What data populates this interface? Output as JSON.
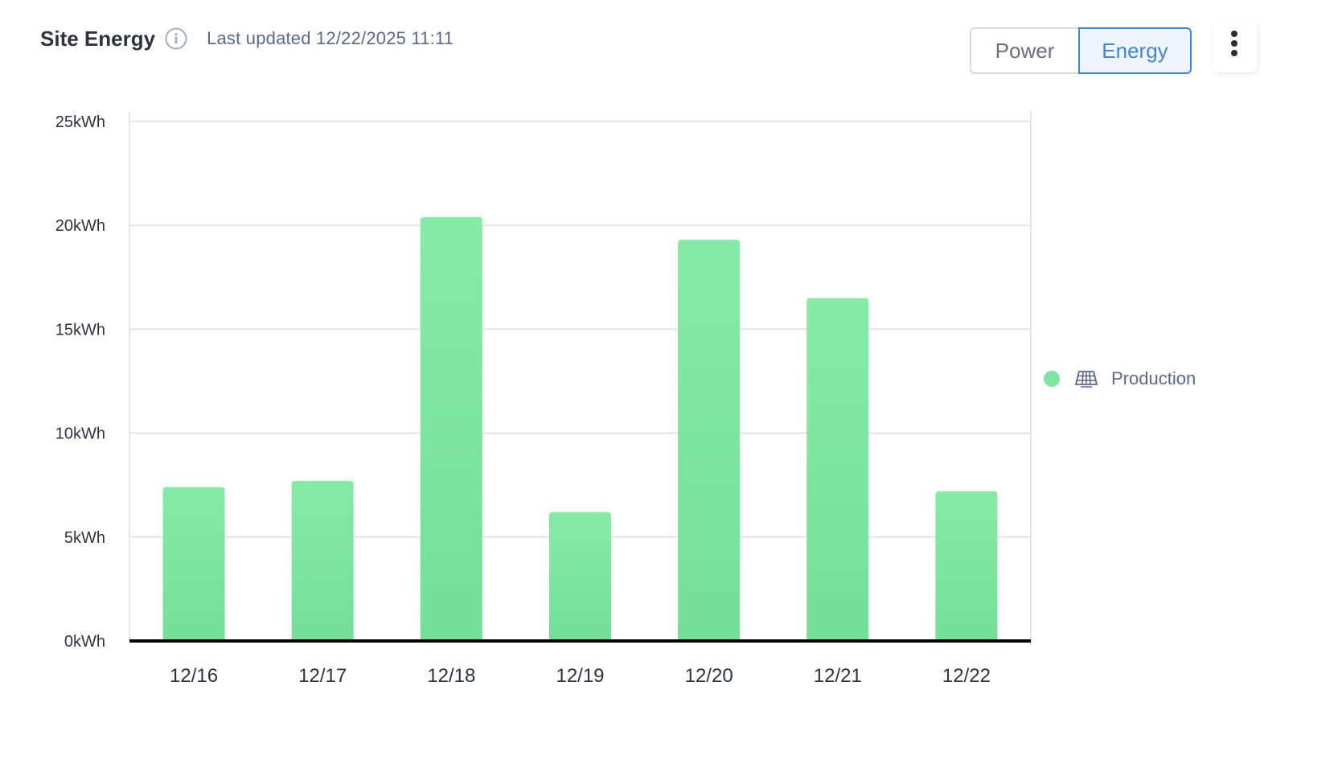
{
  "header": {
    "title": "Site Energy",
    "info_icon": "info-icon",
    "last_updated": "Last updated 12/22/2025 11:11"
  },
  "toggle": {
    "options": [
      "Power",
      "Energy"
    ],
    "selected": "Energy"
  },
  "menu": {
    "icon": "vertical-dots-icon"
  },
  "colors": {
    "bar_fill": "#7fe5a1",
    "bar_fill_bottom": "#74df98",
    "accent": "#3d87e0",
    "grid": "#e3e5e8",
    "axis": "#000000"
  },
  "legend": {
    "marker_color": "#7fe5a1",
    "icon": "solar-panel-icon",
    "label": "Production",
    "position": "right"
  },
  "chart_data": {
    "type": "bar",
    "categories": [
      "12/16",
      "12/17",
      "12/18",
      "12/19",
      "12/20",
      "12/21",
      "12/22"
    ],
    "series": [
      {
        "name": "Production",
        "values": [
          7.4,
          7.7,
          20.4,
          6.2,
          19.3,
          16.5,
          7.2
        ]
      }
    ],
    "unit": "kWh",
    "ylim": [
      0,
      25
    ],
    "yticks": [
      0,
      5,
      10,
      15,
      20,
      25
    ],
    "ytick_labels": [
      "0kWh",
      "5kWh",
      "10kWh",
      "15kWh",
      "20kWh",
      "25kWh"
    ],
    "grid": true,
    "legend_position": "right"
  }
}
